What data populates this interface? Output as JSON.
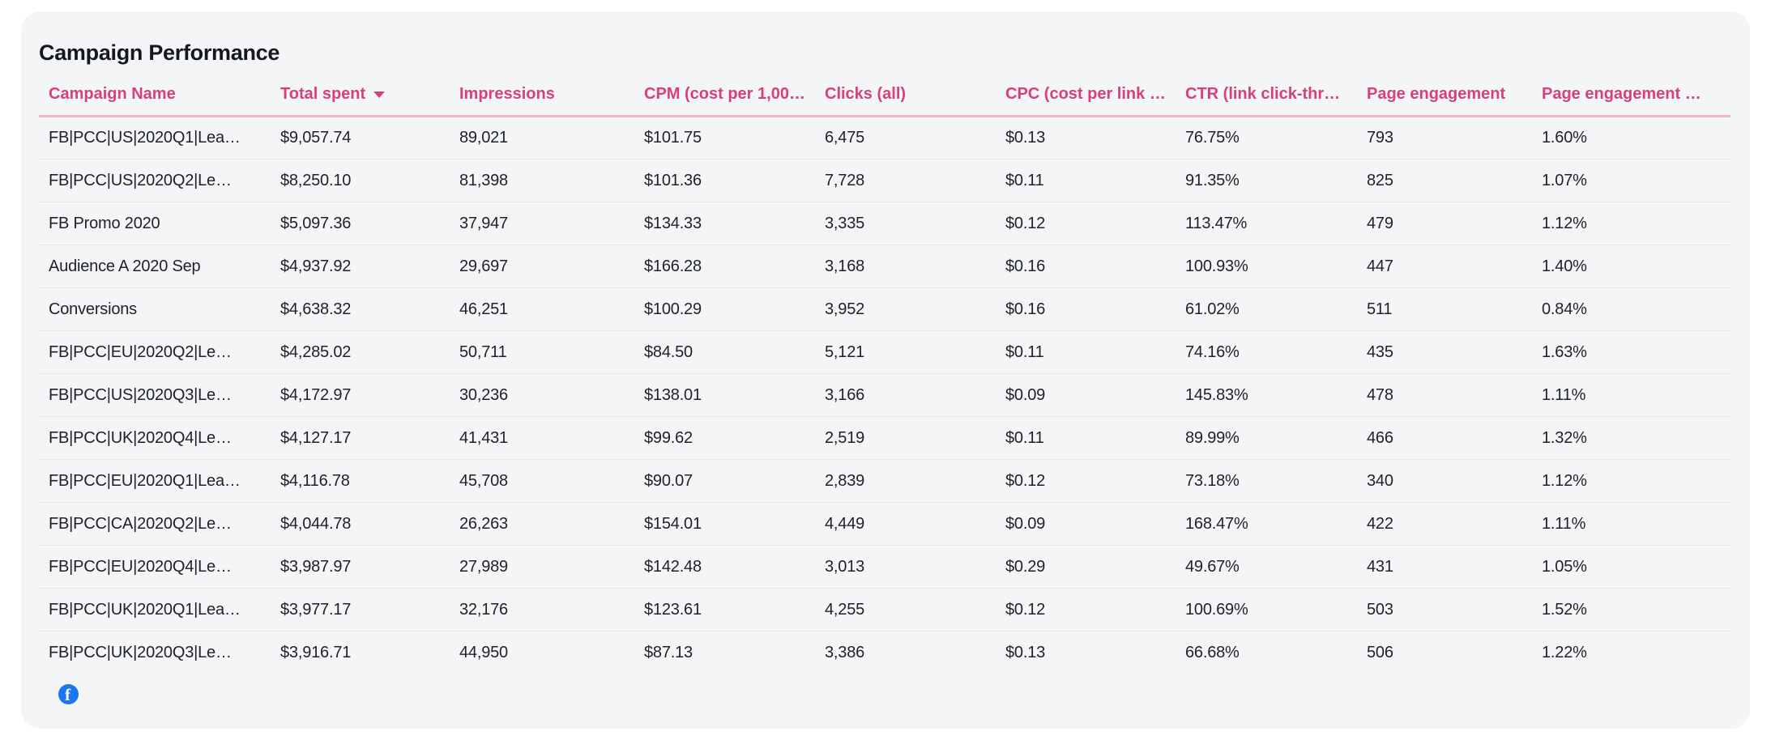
{
  "card": {
    "title": "Campaign Performance"
  },
  "table": {
    "columns": [
      {
        "key": "campaign_name",
        "label": "Campaign Name",
        "sorted": false
      },
      {
        "key": "total_spent",
        "label": "Total spent",
        "sorted": true,
        "sort_direction": "desc"
      },
      {
        "key": "impressions",
        "label": "Impressions",
        "sorted": false
      },
      {
        "key": "cpm",
        "label": "CPM (cost per 1,00…",
        "sorted": false
      },
      {
        "key": "clicks_all",
        "label": "Clicks (all)",
        "sorted": false
      },
      {
        "key": "cpc",
        "label": "CPC (cost per link …",
        "sorted": false
      },
      {
        "key": "ctr",
        "label": "CTR (link click-thr…",
        "sorted": false
      },
      {
        "key": "page_engagement",
        "label": "Page engagement",
        "sorted": false
      },
      {
        "key": "page_engagement_rate",
        "label": "Page engagement …",
        "sorted": false
      }
    ],
    "rows": [
      [
        "FB|PCC|US|2020Q1|Lea…",
        "$9,057.74",
        "89,021",
        "$101.75",
        "6,475",
        "$0.13",
        "76.75%",
        "793",
        "1.60%"
      ],
      [
        "FB|PCC|US|2020Q2|Le…",
        "$8,250.10",
        "81,398",
        "$101.36",
        "7,728",
        "$0.11",
        "91.35%",
        "825",
        "1.07%"
      ],
      [
        "FB Promo 2020",
        "$5,097.36",
        "37,947",
        "$134.33",
        "3,335",
        "$0.12",
        "113.47%",
        "479",
        "1.12%"
      ],
      [
        "Audience A 2020 Sep",
        "$4,937.92",
        "29,697",
        "$166.28",
        "3,168",
        "$0.16",
        "100.93%",
        "447",
        "1.40%"
      ],
      [
        "Conversions",
        "$4,638.32",
        "46,251",
        "$100.29",
        "3,952",
        "$0.16",
        "61.02%",
        "511",
        "0.84%"
      ],
      [
        "FB|PCC|EU|2020Q2|Le…",
        "$4,285.02",
        "50,711",
        "$84.50",
        "5,121",
        "$0.11",
        "74.16%",
        "435",
        "1.63%"
      ],
      [
        "FB|PCC|US|2020Q3|Le…",
        "$4,172.97",
        "30,236",
        "$138.01",
        "3,166",
        "$0.09",
        "145.83%",
        "478",
        "1.11%"
      ],
      [
        "FB|PCC|UK|2020Q4|Le…",
        "$4,127.17",
        "41,431",
        "$99.62",
        "2,519",
        "$0.11",
        "89.99%",
        "466",
        "1.32%"
      ],
      [
        "FB|PCC|EU|2020Q1|Lea…",
        "$4,116.78",
        "45,708",
        "$90.07",
        "2,839",
        "$0.12",
        "73.18%",
        "340",
        "1.12%"
      ],
      [
        "FB|PCC|CA|2020Q2|Le…",
        "$4,044.78",
        "26,263",
        "$154.01",
        "4,449",
        "$0.09",
        "168.47%",
        "422",
        "1.11%"
      ],
      [
        "FB|PCC|EU|2020Q4|Le…",
        "$3,987.97",
        "27,989",
        "$142.48",
        "3,013",
        "$0.29",
        "49.67%",
        "431",
        "1.05%"
      ],
      [
        "FB|PCC|UK|2020Q1|Lea…",
        "$3,977.17",
        "32,176",
        "$123.61",
        "4,255",
        "$0.12",
        "100.69%",
        "503",
        "1.52%"
      ],
      [
        "FB|PCC|UK|2020Q3|Le…",
        "$3,916.71",
        "44,950",
        "$87.13",
        "3,386",
        "$0.13",
        "66.68%",
        "506",
        "1.22%"
      ]
    ]
  },
  "icons": {
    "facebook_glyph": "f"
  },
  "colors": {
    "header_pink": "#d6417b",
    "header_underline_pink": "#f3b5c8",
    "card_background": "#f4f5f6",
    "body_text": "#1e2127",
    "facebook_blue": "#1877f2"
  }
}
